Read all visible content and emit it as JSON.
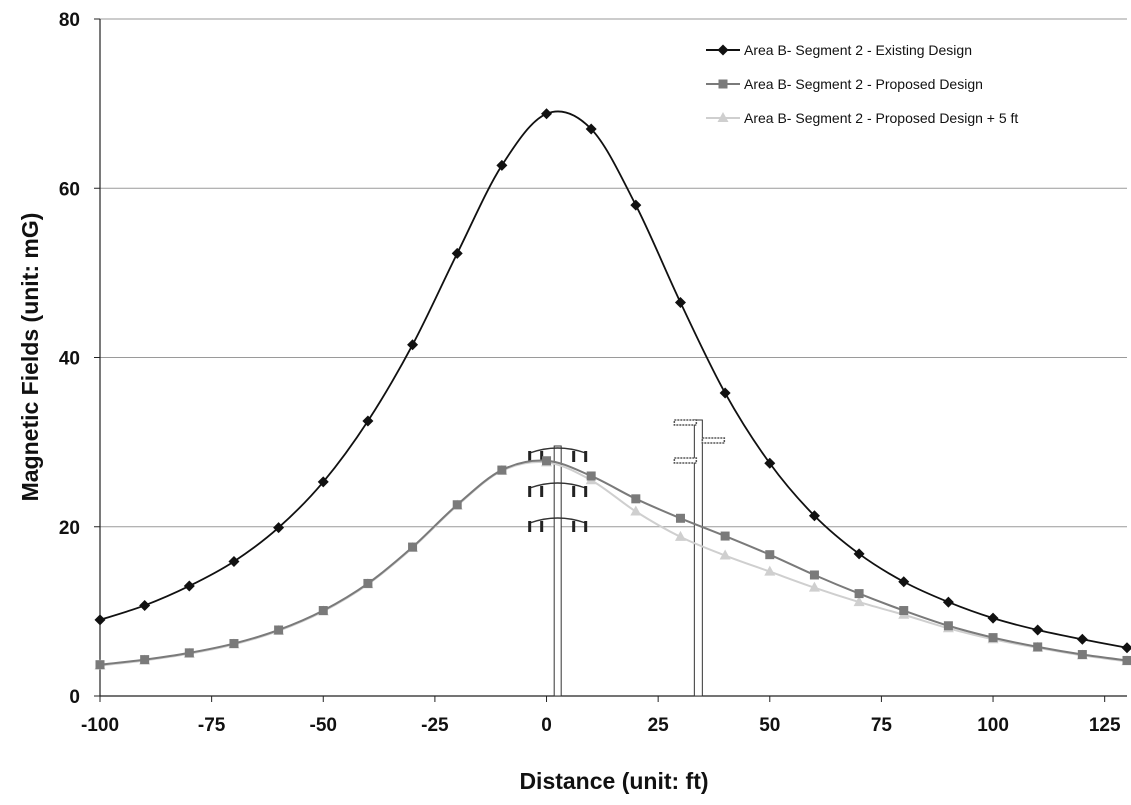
{
  "chart_data": {
    "type": "line",
    "title": "",
    "xlabel": "Distance (unit: ft)",
    "ylabel": "Magnetic Fields (unit: mG)",
    "xlim": [
      -100,
      130
    ],
    "ylim": [
      0,
      80
    ],
    "x_ticks": [
      -100,
      -75,
      -50,
      -25,
      0,
      25,
      50,
      75,
      100,
      125
    ],
    "y_ticks": [
      0,
      20,
      40,
      60,
      80
    ],
    "grid": "horizontal",
    "legend_position": "top-right",
    "x": [
      -100,
      -90,
      -80,
      -70,
      -60,
      -50,
      -40,
      -30,
      -20,
      -10,
      0,
      10,
      20,
      30,
      40,
      50,
      60,
      70,
      80,
      90,
      100,
      110,
      120,
      130
    ],
    "series": [
      {
        "name": "Area B- Segment 2 - Existing Design",
        "color": "#111111",
        "marker": "diamond",
        "values": [
          9.0,
          10.7,
          13.0,
          15.9,
          19.9,
          25.3,
          32.5,
          41.5,
          52.3,
          62.7,
          68.8,
          67.0,
          58.0,
          46.5,
          35.8,
          27.5,
          21.3,
          16.8,
          13.5,
          11.1,
          9.2,
          7.8,
          6.7,
          5.7
        ]
      },
      {
        "name": "Area B- Segment 2 - Proposed Design",
        "color": "#7a7a7a",
        "marker": "square",
        "values": [
          3.7,
          4.3,
          5.1,
          6.2,
          7.8,
          10.1,
          13.3,
          17.6,
          22.6,
          26.7,
          27.8,
          26.0,
          23.3,
          21.0,
          18.9,
          16.7,
          14.3,
          12.1,
          10.1,
          8.3,
          6.9,
          5.8,
          4.9,
          4.2
        ]
      },
      {
        "name": "Area B- Segment 2 - Proposed Design + 5 ft",
        "color": "#cfcfcf",
        "marker": "triangle",
        "values": [
          3.6,
          4.2,
          5.0,
          6.1,
          7.7,
          10.0,
          13.2,
          17.5,
          22.5,
          26.6,
          27.6,
          25.5,
          21.8,
          18.8,
          16.6,
          14.7,
          12.8,
          11.1,
          9.6,
          8.0,
          6.7,
          5.7,
          4.8,
          4.1
        ]
      }
    ]
  }
}
